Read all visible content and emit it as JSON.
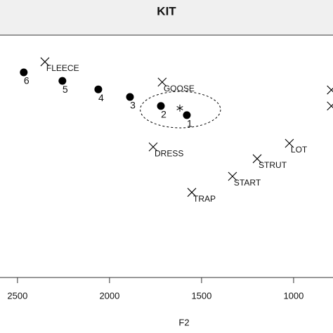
{
  "chart_data": {
    "type": "scatter",
    "title": "KIT",
    "x_label": "F2",
    "xlim": [
      2595,
      786
    ],
    "xticks": [
      2500,
      2000,
      1500,
      1000
    ],
    "ylim": [
      1000,
      200
    ],
    "series": [
      {
        "marker": "cross",
        "color": "#000000",
        "labels": [
          "FLEECE",
          "GOOSE",
          "DRESS",
          "STRUT",
          "LOT",
          "START",
          "TRAP",
          null,
          null
        ],
        "x": [
          2351,
          1714,
          1763,
          1198,
          1023,
          1332,
          1553,
          795,
          795
        ],
        "values": [
          288,
          355,
          569,
          608,
          557,
          666,
          719,
          381,
          434
        ]
      },
      {
        "marker": "dot",
        "color": "#000000",
        "labels": [
          "6",
          "5",
          "4",
          "3",
          "2",
          "1"
        ],
        "x": [
          2466,
          2256,
          2061,
          1889,
          1721,
          1580
        ],
        "values": [
          323,
          351,
          379,
          404,
          434,
          464
        ]
      },
      {
        "marker": "asterisk",
        "color": "#000000",
        "x": [
          1618
        ],
        "values": [
          441
        ]
      }
    ],
    "ellipse": {
      "center_x": 1615,
      "center_y": 446,
      "radius_x": 218,
      "radius_y": 60
    }
  }
}
